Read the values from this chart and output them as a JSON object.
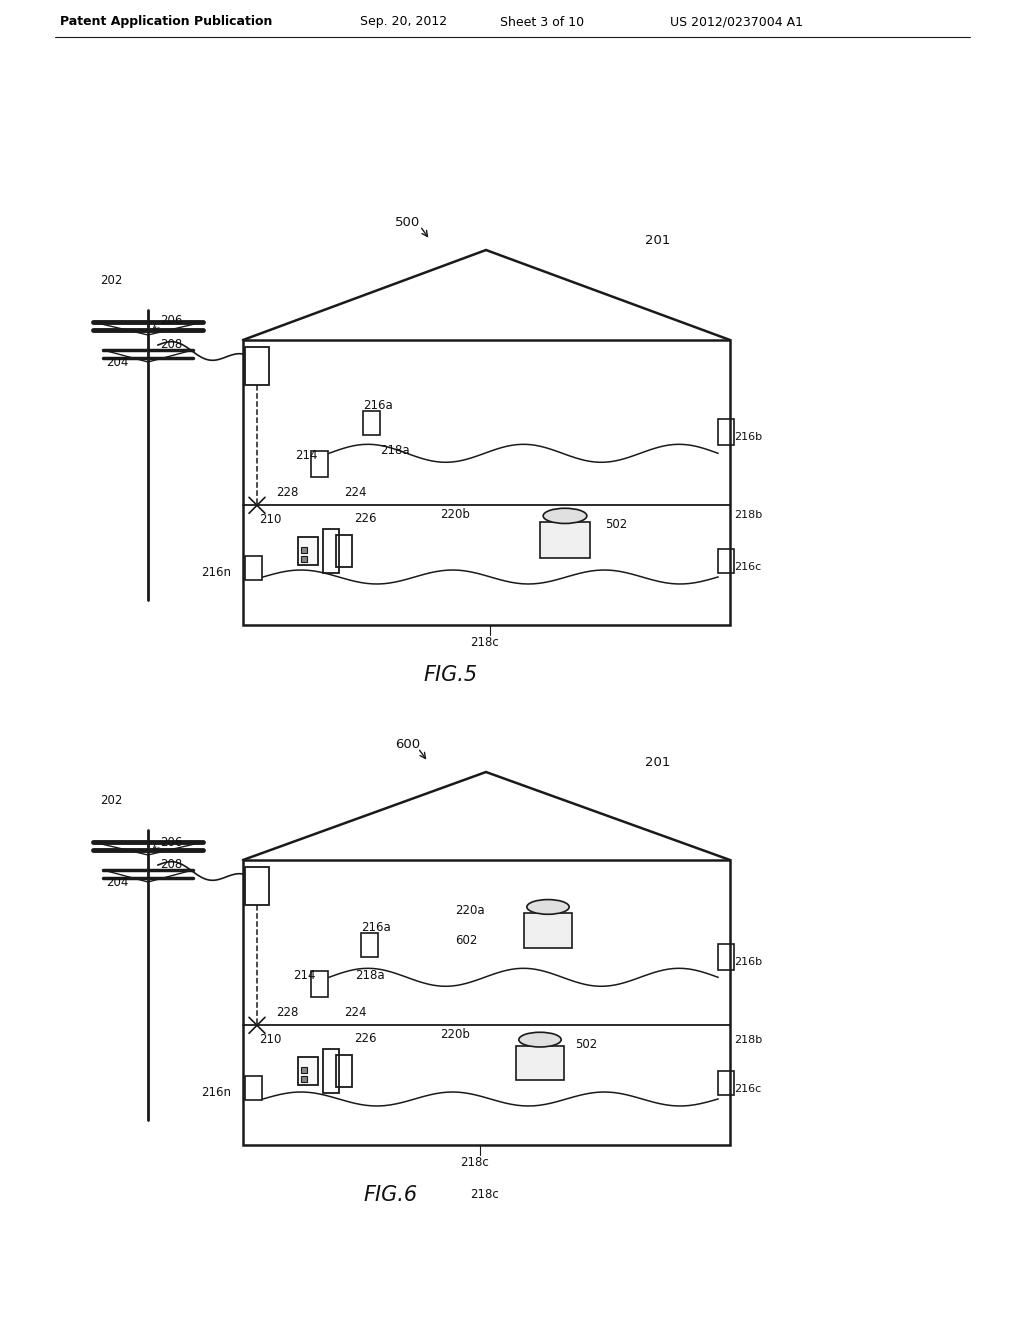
{
  "bg_color": "#ffffff",
  "header_text": "Patent Application Publication",
  "header_date": "Sep. 20, 2012",
  "header_sheet": "Sheet 3 of 10",
  "header_patent": "US 2012/0237004 A1",
  "fig5_label": "FIG.5",
  "fig6_label": "FIG.6",
  "line_color": "#1a1a1a",
  "label_fontsize": 8.5,
  "header_fontsize": 9,
  "fig_label_fontsize": 15
}
